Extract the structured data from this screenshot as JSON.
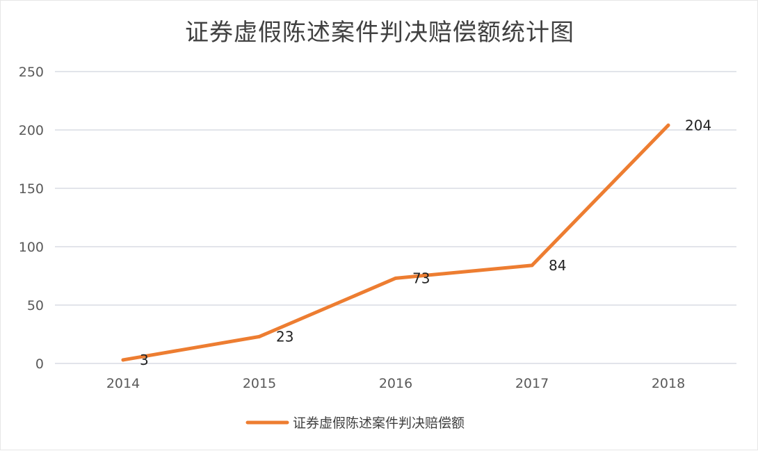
{
  "chart_data": {
    "type": "line",
    "title": "证券虚假陈述案件判决赔偿额统计图",
    "xlabel": "",
    "ylabel": "",
    "categories": [
      "2014",
      "2015",
      "2016",
      "2017",
      "2018"
    ],
    "series": [
      {
        "name": "证券虚假陈述案件判决赔偿额",
        "values": [
          3,
          23,
          73,
          84,
          204
        ],
        "data_labels": [
          "3",
          "23",
          "73",
          "84",
          "204"
        ],
        "color": "#ED7D31"
      }
    ],
    "ylim": [
      0,
      250
    ],
    "yticks": [
      0,
      50,
      100,
      150,
      200,
      250
    ],
    "ytick_labels": [
      "0",
      "50",
      "100",
      "150",
      "200",
      "250"
    ],
    "grid": true,
    "gridline_color": "#D9DCE3",
    "legend": "bottom"
  }
}
